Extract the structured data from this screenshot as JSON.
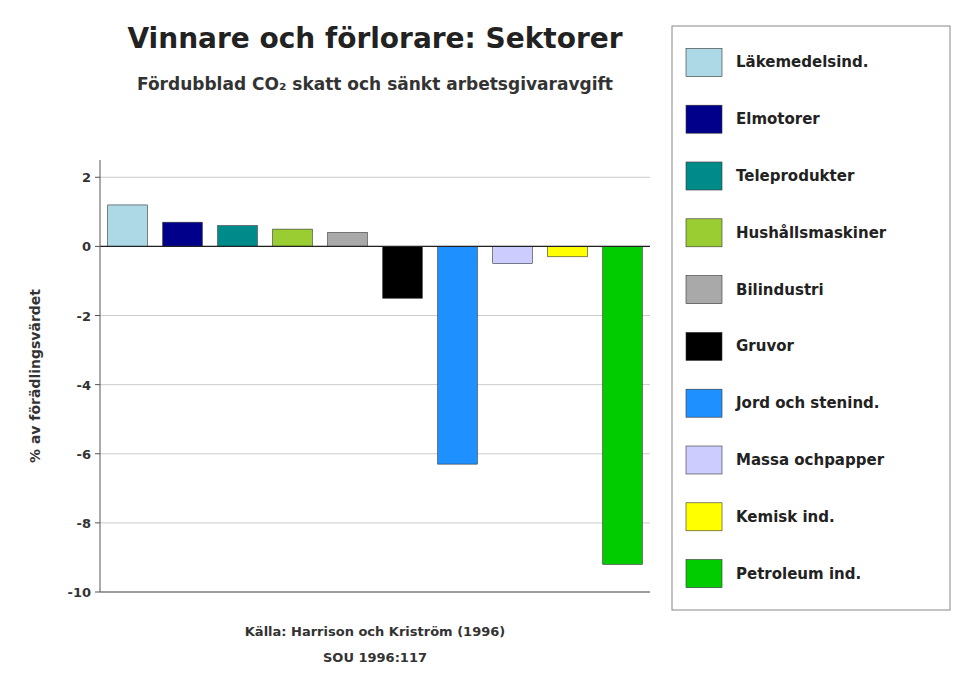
{
  "chart_data": {
    "type": "bar",
    "title": "Vinnare och förlorare: Sektorer",
    "subtitle": "Fördubblad CO₂ skatt och sänkt arbetsgivaravgift",
    "ylabel": "% av förädlingsvärdet",
    "categories": [
      "Läkemedelsind.",
      "Elmotorer",
      "Teleprodukter",
      "Hushållsmaskiner",
      "Bilindustri",
      "Gruvor",
      "Jord och stenind.",
      "Massa ochpapper",
      "Kemisk ind.",
      "Petroleum ind."
    ],
    "values": [
      1.2,
      0.7,
      0.6,
      0.5,
      0.4,
      -1.5,
      -6.3,
      -0.5,
      -0.3,
      -9.2
    ],
    "colors": [
      "#add8e6",
      "#00008b",
      "#008b8b",
      "#9acd32",
      "#a9a9a9",
      "#000000",
      "#1e90ff",
      "#ccccff",
      "#ffff00",
      "#00cc00"
    ],
    "ylim": [
      -10,
      2.5
    ],
    "yticks": [
      2,
      0,
      -2,
      -4,
      -6,
      -8,
      -10
    ],
    "grid": true,
    "legend": "right",
    "tick_labels": "y",
    "annotations": [
      "Källa: Harrison och Kriström (1996)",
      "SOU 1996:117"
    ]
  }
}
